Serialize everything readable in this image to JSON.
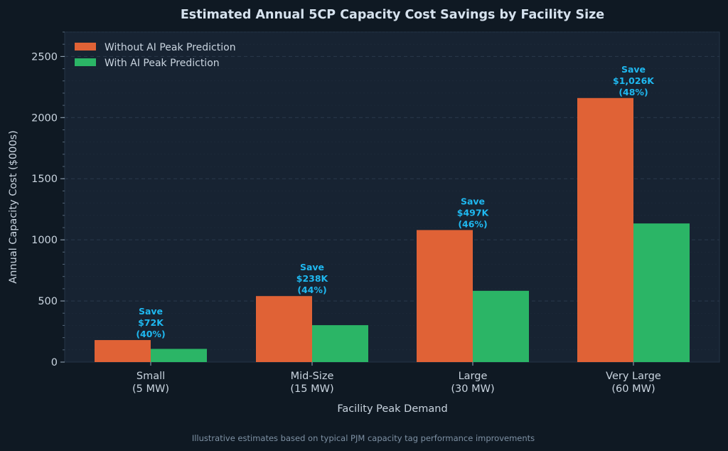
{
  "chart_data": {
    "type": "bar",
    "title": "Estimated Annual 5CP Capacity Cost Savings by Facility Size",
    "xlabel": "Facility Peak Demand",
    "ylabel": "Annual Capacity Cost ($000s)",
    "ylim": [
      0,
      2700
    ],
    "yticks": [
      0,
      500,
      1000,
      1500,
      2000,
      2500
    ],
    "grid": true,
    "legend_position": "top-left",
    "categories": [
      [
        "Small",
        "(5 MW)"
      ],
      [
        "Mid-Size",
        "(15 MW)"
      ],
      [
        "Large",
        "(30 MW)"
      ],
      [
        "Very Large",
        "(60 MW)"
      ]
    ],
    "series": [
      {
        "name": "Without AI Peak Prediction",
        "color": "#e06236",
        "values": [
          180,
          540,
          1080,
          2160
        ]
      },
      {
        "name": "With AI Peak Prediction",
        "color": "#2bb566",
        "values": [
          108,
          302,
          583,
          1134
        ]
      }
    ],
    "annotations": [
      [
        "Save",
        "$72K",
        "(40%)"
      ],
      [
        "Save",
        "$238K",
        "(44%)"
      ],
      [
        "Save",
        "$497K",
        "(46%)"
      ],
      [
        "Save",
        "$1,026K",
        "(48%)"
      ]
    ],
    "footnote": "Illustrative estimates based on typical PJM capacity tag performance improvements"
  },
  "colors": {
    "background": "#0f1923",
    "plot_background": "#172332",
    "annotation": "#1fb8f0"
  }
}
